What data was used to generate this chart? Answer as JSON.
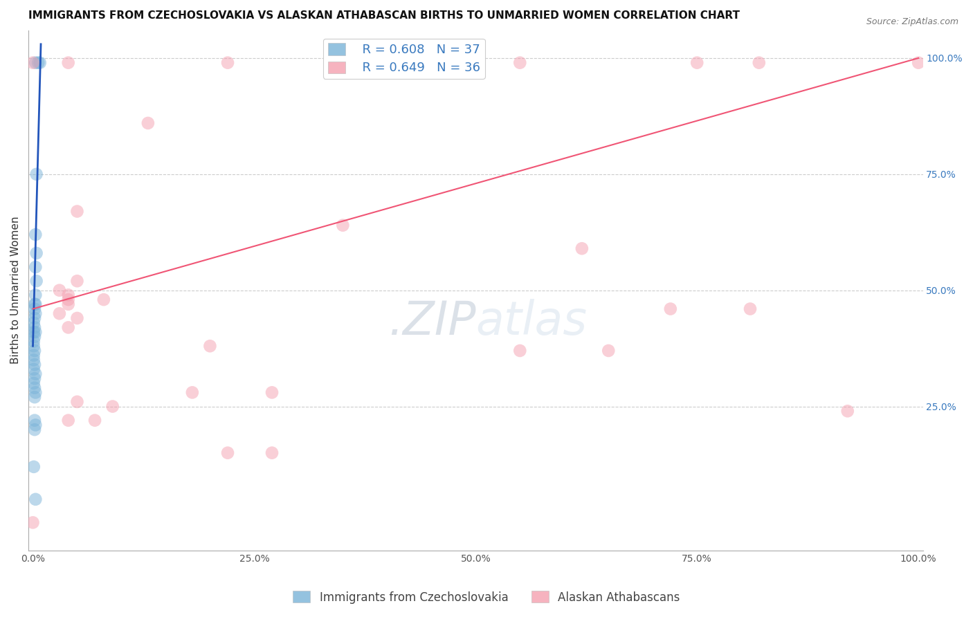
{
  "title": "IMMIGRANTS FROM CZECHOSLOVAKIA VS ALASKAN ATHABASCAN BIRTHS TO UNMARRIED WOMEN CORRELATION CHART",
  "source_text": "Source: ZipAtlas.com",
  "ylabel": "Births to Unmarried Women",
  "xlim": [
    -0.005,
    1.005
  ],
  "ylim": [
    -0.06,
    1.06
  ],
  "xticks": [
    0.0,
    0.25,
    0.5,
    0.75,
    1.0
  ],
  "xtick_labels": [
    "0.0%",
    "25.0%",
    "50.0%",
    "75.0%",
    "100.0%"
  ],
  "yticks_right": [
    0.25,
    0.5,
    0.75,
    1.0
  ],
  "ytick_labels_right": [
    "25.0%",
    "50.0%",
    "75.0%",
    "100.0%"
  ],
  "blue_R": 0.608,
  "blue_N": 37,
  "pink_R": 0.649,
  "pink_N": 36,
  "legend_label_blue": "Immigrants from Czechoslovakia",
  "legend_label_pink": "Alaskan Athabascans",
  "blue_color": "#7ab3d8",
  "pink_color": "#f4a0b0",
  "blue_line_color": "#2255bb",
  "pink_line_color": "#f05575",
  "blue_scatter": [
    [
      0.003,
      0.99
    ],
    [
      0.006,
      0.99
    ],
    [
      0.008,
      0.99
    ],
    [
      0.004,
      0.75
    ],
    [
      0.003,
      0.62
    ],
    [
      0.004,
      0.58
    ],
    [
      0.003,
      0.55
    ],
    [
      0.004,
      0.52
    ],
    [
      0.003,
      0.49
    ],
    [
      0.002,
      0.47
    ],
    [
      0.003,
      0.47
    ],
    [
      0.002,
      0.46
    ],
    [
      0.003,
      0.45
    ],
    [
      0.002,
      0.44
    ],
    [
      0.001,
      0.43
    ],
    [
      0.002,
      0.42
    ],
    [
      0.001,
      0.41
    ],
    [
      0.003,
      0.41
    ],
    [
      0.002,
      0.4
    ],
    [
      0.001,
      0.39
    ],
    [
      0.001,
      0.38
    ],
    [
      0.002,
      0.37
    ],
    [
      0.001,
      0.36
    ],
    [
      0.001,
      0.35
    ],
    [
      0.002,
      0.34
    ],
    [
      0.001,
      0.33
    ],
    [
      0.003,
      0.32
    ],
    [
      0.002,
      0.31
    ],
    [
      0.001,
      0.3
    ],
    [
      0.002,
      0.29
    ],
    [
      0.003,
      0.28
    ],
    [
      0.002,
      0.27
    ],
    [
      0.002,
      0.22
    ],
    [
      0.003,
      0.21
    ],
    [
      0.002,
      0.2
    ],
    [
      0.001,
      0.12
    ],
    [
      0.003,
      0.05
    ]
  ],
  "pink_scatter": [
    [
      0.0,
      0.99
    ],
    [
      0.04,
      0.99
    ],
    [
      0.22,
      0.99
    ],
    [
      0.42,
      0.99
    ],
    [
      0.55,
      0.99
    ],
    [
      0.75,
      0.99
    ],
    [
      0.82,
      0.99
    ],
    [
      1.0,
      0.99
    ],
    [
      0.13,
      0.86
    ],
    [
      0.05,
      0.67
    ],
    [
      0.35,
      0.64
    ],
    [
      0.62,
      0.59
    ],
    [
      0.05,
      0.52
    ],
    [
      0.03,
      0.5
    ],
    [
      0.04,
      0.49
    ],
    [
      0.08,
      0.48
    ],
    [
      0.04,
      0.48
    ],
    [
      0.04,
      0.47
    ],
    [
      0.72,
      0.46
    ],
    [
      0.81,
      0.46
    ],
    [
      0.03,
      0.45
    ],
    [
      0.05,
      0.44
    ],
    [
      0.04,
      0.42
    ],
    [
      0.2,
      0.38
    ],
    [
      0.55,
      0.37
    ],
    [
      0.65,
      0.37
    ],
    [
      0.18,
      0.28
    ],
    [
      0.27,
      0.28
    ],
    [
      0.05,
      0.26
    ],
    [
      0.09,
      0.25
    ],
    [
      0.92,
      0.24
    ],
    [
      0.04,
      0.22
    ],
    [
      0.07,
      0.22
    ],
    [
      0.27,
      0.15
    ],
    [
      0.22,
      0.15
    ],
    [
      0.0,
      0.0
    ]
  ],
  "blue_line_x": [
    0.0,
    0.009
  ],
  "blue_line_y": [
    0.38,
    1.03
  ],
  "pink_line_x": [
    0.0,
    1.0
  ],
  "pink_line_y": [
    0.46,
    1.0
  ],
  "watermark_text": ".ZIPatlas",
  "background_color": "#ffffff",
  "grid_color": "#cccccc",
  "grid_linestyle": "--",
  "title_fontsize": 11,
  "axis_label_fontsize": 11,
  "tick_fontsize": 10,
  "legend_fontsize": 12
}
